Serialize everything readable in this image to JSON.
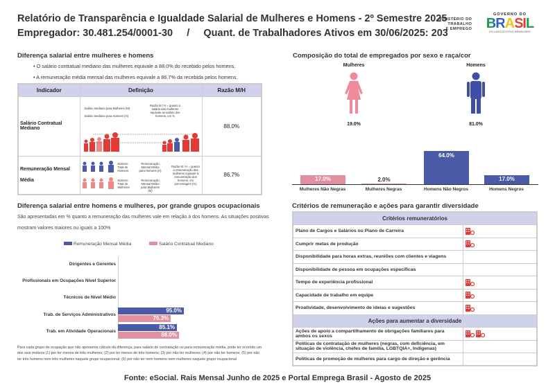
{
  "header": {
    "title": "Relatório de Transparência e Igualdade Salarial de Mulheres e Homens - 2º Semestre 2025",
    "subtitle": "Empregador: 30.481.254/0001-30     /     Quant. de Trabalhadores Ativos em 30/06/2025: 203"
  },
  "logos": {
    "ministry": [
      "MINISTÉRIO DO",
      "TRABALHO",
      "E EMPREGO"
    ],
    "gov_top": "GOVERNO DO",
    "gov_main": "BRASIL",
    "gov_sub": "DO LADO DO POVO BRASILEIRO"
  },
  "diff": {
    "title": "Diferença salarial entre mulheres e homens",
    "bullets": [
      "• O salário contratual mediano das mulheres equivale a 88.0% do recebido pelos homens.",
      "• A remuneração média mensal das mulheres equivale a 86.7% da recebida pelos homens."
    ],
    "headers": [
      "Indicador",
      "Definição",
      "Razão M/H"
    ],
    "rows": [
      {
        "indicator": "Salário Contratual Mediano",
        "value": "88.0%",
        "def": [
          "Salário mediano para Mulheres (M)",
          "Salário mediano para Homens (H)",
          "Razão M / H = quanto o salário das mulheres equivale ao salário dos homens, em %"
        ]
      },
      {
        "indicator": "Remuneração Mensal Média",
        "value": "86.7%",
        "def": [
          "Número Total de Homens",
          "Remuneração Mensal Média para Homens (H)",
          "Número Total de Mulheres",
          "Remuneração Mensal Média para Mulheres (M)",
          "Razão M / H = quanto a remuneração das mulheres equivale à remuneração dos homens, em porcentagem (%)"
        ]
      }
    ]
  },
  "composition": {
    "title": "Composição do total de empregados por sexo e raça/cor",
    "women_label": "Mulheres",
    "men_label": "Homens",
    "women_pct": "19.0%",
    "men_pct": "81.0%",
    "chart_data": {
      "type": "bar",
      "categories": [
        "Mulheres Não Negras",
        "Mulheres Negras",
        "Homens Não Negros",
        "Homens Negros"
      ],
      "values": [
        17.0,
        2.0,
        64.0,
        17.0
      ],
      "labels": [
        "17.0%",
        "2.0%",
        "64.0%",
        "17.0%"
      ],
      "colors": [
        "#e0909f",
        "#e0909f",
        "#4b5aa6",
        "#4b5aa6"
      ]
    }
  },
  "groups": {
    "title": "Diferença salarial entre homens e mulheres, por grande grupos ocupacionais",
    "desc1": "São apresentadas em % quanto a remuneração das mulheres vale em relação à dos homens. As situações positivas",
    "desc2": "mostram valores maiores ou iguais a 100%",
    "chart_data": {
      "type": "bar",
      "orientation": "horizontal",
      "categories": [
        "Dirigentes e Gerentes",
        "Profissionais em Ocupações Nível Superior",
        "Técnicos de Nível Médio",
        "Trab. de Serviços Administrativos",
        "Trab. em Atividade Operacionais"
      ],
      "series": [
        {
          "name": "Remuneração Mensal Média",
          "color": "#4b5aa6",
          "values": [
            null,
            null,
            null,
            95.0,
            85.1
          ],
          "labels": [
            "",
            "",
            "",
            "95.0%",
            "85.1%"
          ]
        },
        {
          "name": "Salário Contratual Mediano",
          "color": "#e0909f",
          "values": [
            null,
            null,
            null,
            76.3,
            88.0
          ],
          "labels": [
            "",
            "",
            "",
            "76.3%",
            "88.0%"
          ]
        }
      ],
      "legend": "top"
    },
    "footnote": "Para cada grupo de ocupação que não apresenta cálculo da diferença, para salário de contratação ou para remuneração média, pode ter ocorrido um dos seis motivos:(1) por ter menos de três mulheres; (2) por ter menos de três homens; (3) por não ter mulheres; (4) por não ter homens; (5) por não ter três homens nem três mulheres naquele grupo ocupacional; (6) por não ter nem homens nem mulheres naquele grupo ocupacional"
  },
  "criteria": {
    "title": "Critérios de remuneração e ações para garantir diversidade",
    "section1": "Critérios remuneratórios",
    "items1": [
      {
        "label": "Plano de Cargos e Salários ou Plano de Carreira",
        "icons": 1
      },
      {
        "label": "Cumprir metas de produção",
        "icons": 1
      },
      {
        "label": "Disponibilidade para horas extras, reuniões com clientes e viagens",
        "icons": 0
      },
      {
        "label": "Disponibilidade de pessoa em ocupações específicas",
        "icons": 0
      },
      {
        "label": "Tempo de experiência profissional",
        "icons": 1
      },
      {
        "label": "Capacidade de trabalho em equipe",
        "icons": 1
      },
      {
        "label": "Proatividade, desenvolvimento de ideias e sugestões",
        "icons": 1
      }
    ],
    "section2": "Ações para aumentar a diversidade",
    "items2": [
      {
        "label": "Ações de apoio a compartilhamento de obrigações familiares para ambos os sexos",
        "icons": 2
      },
      {
        "label": "Políticas de contratação de mulheres (negras, com deficiência, em situação de violência, chefes de família, LGBTQIA+, Indígenas)",
        "icons": 0
      },
      {
        "label": "Políticas de promoção de mulheres para cargo de direção e gerência",
        "icons": 0
      }
    ],
    "icon": "building-check-icon",
    "icon_color": "#e53935"
  },
  "footer": "Fonte: eSocial. Rais Mensal Junho de 2025 e Portal Emprega Brasil - Agosto de 2025"
}
